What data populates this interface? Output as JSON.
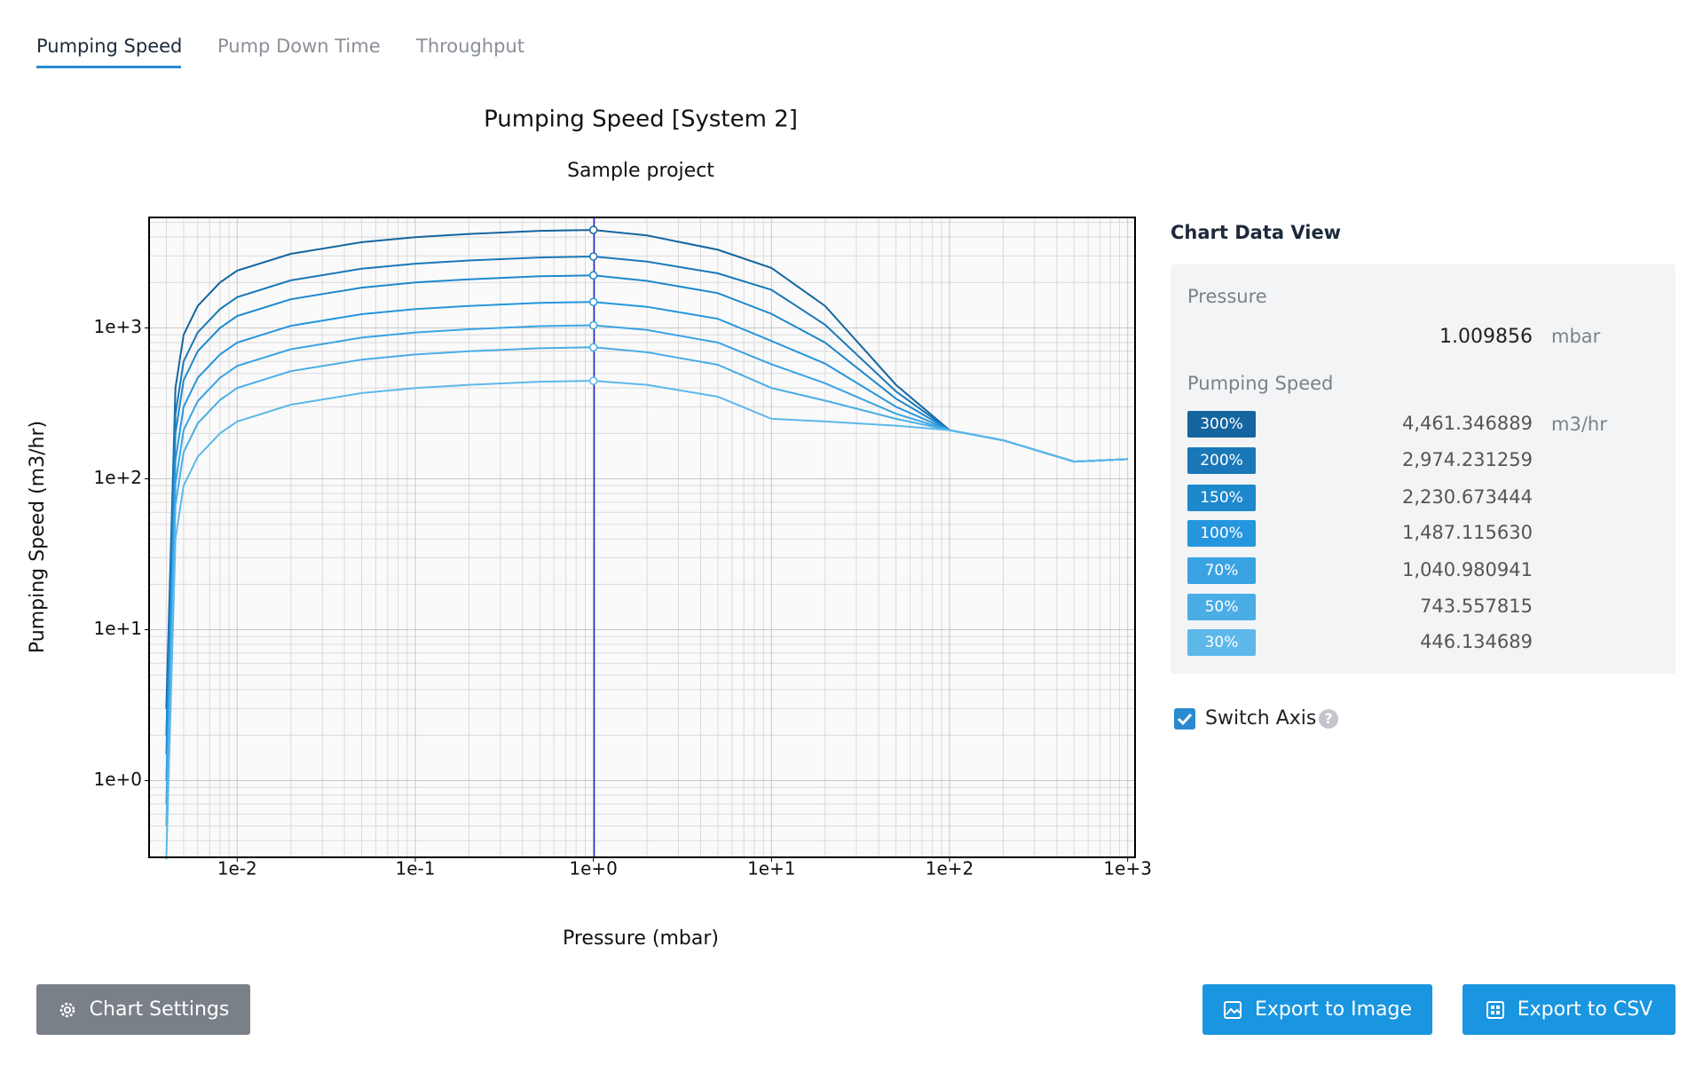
{
  "tabs": [
    "Pumping Speed",
    "Pump Down Time",
    "Throughput"
  ],
  "chart_data": {
    "type": "line",
    "title": "Pumping Speed [System 2]",
    "subtitle": "Sample project",
    "x_label": "Pressure (mbar)",
    "y_label": "Pumping Speed (m3/hr)",
    "x_log": true,
    "y_log": true,
    "grid": true,
    "minor_grid": true,
    "xlim": [
      0.0032,
      1100
    ],
    "ylim": [
      0.31,
      5400
    ],
    "xticks": [
      {
        "value": 0.01,
        "label": "1e-2"
      },
      {
        "value": 0.1,
        "label": "1e-1"
      },
      {
        "value": 1,
        "label": "1e+0"
      },
      {
        "value": 10,
        "label": "1e+1"
      },
      {
        "value": 100,
        "label": "1e+2"
      },
      {
        "value": 1000,
        "label": "1e+3"
      }
    ],
    "yticks": [
      {
        "value": 1,
        "label": "1e+0"
      },
      {
        "value": 10,
        "label": "1e+1"
      },
      {
        "value": 100,
        "label": "1e+2"
      },
      {
        "value": 1000,
        "label": "1e+3"
      }
    ],
    "cursor_x": 1.009856,
    "cursor_color": "#2222cc",
    "x": [
      0.004,
      0.0045,
      0.005,
      0.006,
      0.008,
      0.01,
      0.02,
      0.05,
      0.1,
      0.2,
      0.5,
      1,
      2,
      5,
      10,
      20,
      50,
      100,
      200,
      500,
      1000
    ],
    "series": [
      {
        "name": "300%",
        "color": "#1565a0",
        "values": [
          3,
          400,
          900,
          1400,
          2000,
          2400,
          3100,
          3700,
          4000,
          4200,
          4400,
          4461,
          4100,
          3300,
          2500,
          1400,
          420,
          210,
          180,
          130,
          135
        ]
      },
      {
        "name": "200%",
        "color": "#1a78b8",
        "values": [
          2,
          267,
          600,
          933,
          1333,
          1600,
          2067,
          2467,
          2667,
          2800,
          2933,
          2974,
          2750,
          2300,
          1790,
          1050,
          380,
          210,
          180,
          130,
          135
        ]
      },
      {
        "name": "150%",
        "color": "#1d88cc",
        "values": [
          1.5,
          200,
          450,
          700,
          1000,
          1200,
          1550,
          1850,
          2000,
          2100,
          2200,
          2231,
          2050,
          1700,
          1240,
          800,
          340,
          210,
          180,
          130,
          135
        ]
      },
      {
        "name": "100%",
        "color": "#2596dd",
        "values": [
          1,
          133,
          300,
          467,
          667,
          800,
          1033,
          1233,
          1333,
          1400,
          1467,
          1487,
          1380,
          1150,
          820,
          580,
          300,
          210,
          180,
          130,
          135
        ]
      },
      {
        "name": "70%",
        "color": "#3aa3e3",
        "values": [
          0.7,
          93,
          210,
          327,
          467,
          560,
          723,
          863,
          933,
          980,
          1027,
          1041,
          970,
          800,
          575,
          430,
          270,
          210,
          180,
          130,
          135
        ]
      },
      {
        "name": "50%",
        "color": "#4aade6",
        "values": [
          0.5,
          67,
          150,
          233,
          333,
          400,
          517,
          617,
          667,
          700,
          733,
          744,
          690,
          570,
          400,
          330,
          250,
          210,
          180,
          130,
          135
        ]
      },
      {
        "name": "30%",
        "color": "#5db8ea",
        "values": [
          0.3,
          40,
          90,
          140,
          200,
          240,
          310,
          370,
          400,
          420,
          440,
          446,
          420,
          350,
          250,
          240,
          225,
          210,
          180,
          130,
          135
        ]
      }
    ]
  },
  "data_view": {
    "title": "Chart Data View",
    "pressure_label": "Pressure",
    "pressure_unit": "mbar",
    "speed_label": "Pumping Speed",
    "speed_unit": "m3/hr",
    "speeds": [
      "4,461.346889",
      "2,974.231259",
      "2,230.673444",
      "1,487.115630",
      "1,040.980941",
      "743.557815",
      "446.134689"
    ],
    "switch_axis": "Switch Axis"
  },
  "buttons": {
    "settings": "Chart Settings",
    "export_image": "Export to Image",
    "export_csv": "Export to CSV"
  }
}
